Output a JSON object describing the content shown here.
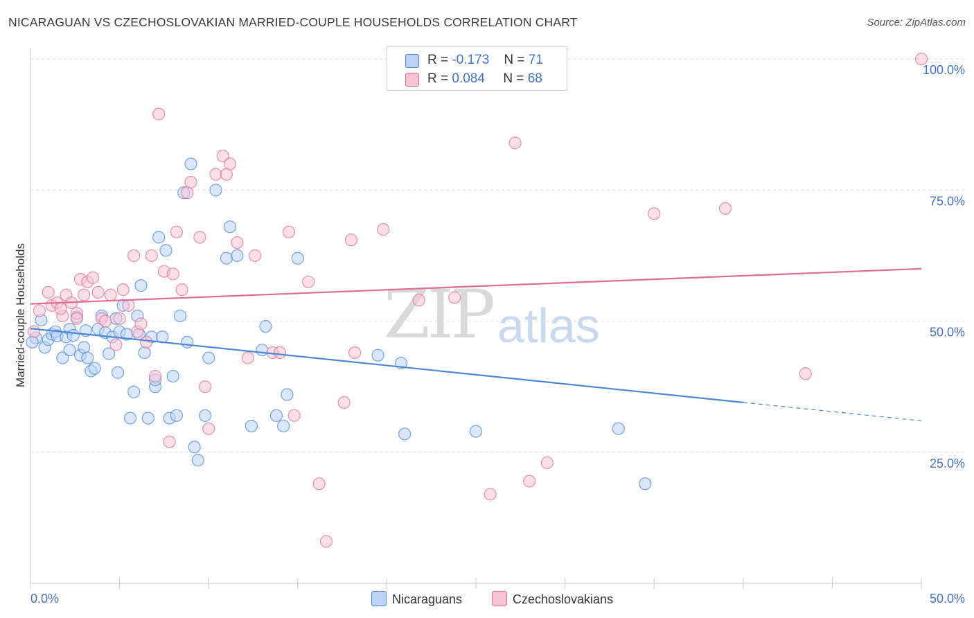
{
  "title": "NICARAGUAN VS CZECHOSLOVAKIAN MARRIED-COUPLE HOUSEHOLDS CORRELATION CHART",
  "source": "Source: ZipAtlas.com",
  "watermark": {
    "zip": "ZIP",
    "atlas": "atlas"
  },
  "colors": {
    "blue": "#4a86d8",
    "blue_fill": "#bcd3f5",
    "pink": "#e06c96",
    "pink_fill": "#f8c4d5",
    "grid": "#dddddd",
    "tick_text": "#4472c4"
  },
  "legend": {
    "rows": [
      {
        "r_label": "R =",
        "r_value": "-0.173",
        "n_label": "N =",
        "n_value": "71"
      },
      {
        "r_label": "R =",
        "r_value": "0.084",
        "n_label": "N =",
        "n_value": "68"
      }
    ]
  },
  "bottom_legend": [
    "Nicaraguans",
    "Czechoslovakians"
  ],
  "chart_data": {
    "type": "scatter",
    "title": "NICARAGUAN VS CZECHOSLOVAKIAN MARRIED-COUPLE HOUSEHOLDS CORRELATION CHART",
    "xlabel": "",
    "ylabel": "Married-couple Households",
    "xlim": [
      0,
      50
    ],
    "ylim": [
      0,
      102
    ],
    "x_tick_labels": [
      "0.0%",
      "50.0%"
    ],
    "y_ticks": [
      25,
      50,
      75,
      100
    ],
    "y_tick_labels": [
      "25.0%",
      "50.0%",
      "75.0%",
      "100.0%"
    ],
    "grid": true,
    "legend_placement": "top-center",
    "series": [
      {
        "name": "Nicaraguans",
        "color": "#4a86d8",
        "trend": {
          "x": [
            0,
            40
          ],
          "y": [
            48.6,
            34.5
          ],
          "dashed_to": [
            50,
            31.0
          ]
        },
        "points": [
          [
            0.3,
            46.8
          ],
          [
            0.6,
            50.2
          ],
          [
            0.8,
            45.0
          ],
          [
            1.0,
            46.5
          ],
          [
            1.2,
            47.5
          ],
          [
            1.4,
            48.0
          ],
          [
            1.5,
            47.2
          ],
          [
            1.8,
            43.0
          ],
          [
            2.0,
            47.0
          ],
          [
            2.2,
            48.5
          ],
          [
            2.4,
            47.3
          ],
          [
            2.6,
            50.8
          ],
          [
            2.8,
            43.5
          ],
          [
            3.0,
            45.0
          ],
          [
            3.2,
            43.0
          ],
          [
            3.4,
            40.5
          ],
          [
            3.6,
            41.0
          ],
          [
            3.8,
            48.5
          ],
          [
            4.0,
            51.0
          ],
          [
            4.2,
            47.8
          ],
          [
            4.4,
            43.8
          ],
          [
            4.6,
            47.0
          ],
          [
            4.8,
            50.5
          ],
          [
            5.0,
            48.0
          ],
          [
            5.2,
            53.0
          ],
          [
            5.4,
            47.5
          ],
          [
            5.6,
            31.5
          ],
          [
            5.8,
            36.5
          ],
          [
            6.0,
            51.0
          ],
          [
            6.2,
            56.8
          ],
          [
            6.4,
            44.0
          ],
          [
            6.6,
            31.5
          ],
          [
            6.8,
            47.0
          ],
          [
            7.0,
            37.5
          ],
          [
            7.2,
            66.0
          ],
          [
            7.4,
            47.0
          ],
          [
            7.6,
            63.5
          ],
          [
            7.8,
            31.5
          ],
          [
            8.0,
            39.5
          ],
          [
            8.2,
            32.0
          ],
          [
            8.4,
            51.0
          ],
          [
            8.6,
            74.5
          ],
          [
            8.8,
            46.0
          ],
          [
            9.0,
            80.0
          ],
          [
            9.2,
            26.0
          ],
          [
            9.4,
            23.5
          ],
          [
            9.8,
            32.0
          ],
          [
            10.0,
            43.0
          ],
          [
            10.4,
            75.0
          ],
          [
            11.0,
            62.0
          ],
          [
            11.2,
            68.0
          ],
          [
            11.6,
            62.5
          ],
          [
            12.4,
            30.0
          ],
          [
            13.0,
            44.5
          ],
          [
            13.2,
            49.0
          ],
          [
            13.8,
            32.0
          ],
          [
            14.2,
            30.0
          ],
          [
            14.4,
            36.0
          ],
          [
            15.0,
            62.0
          ],
          [
            19.5,
            43.5
          ],
          [
            20.8,
            42.0
          ],
          [
            21.0,
            28.5
          ],
          [
            25.0,
            29.0
          ],
          [
            33.0,
            29.5
          ],
          [
            34.5,
            19.0
          ],
          [
            2.2,
            44.5
          ],
          [
            4.9,
            40.2
          ],
          [
            7.0,
            38.8
          ],
          [
            6.1,
            47.5
          ],
          [
            3.1,
            48.2
          ],
          [
            0.1,
            46.0
          ]
        ]
      },
      {
        "name": "Czechoslovakians",
        "color": "#e06c96",
        "trend": {
          "x": [
            0,
            50
          ],
          "y": [
            53.3,
            60.0
          ]
        },
        "points": [
          [
            0.5,
            52.0
          ],
          [
            1.0,
            55.5
          ],
          [
            1.2,
            53.0
          ],
          [
            1.5,
            53.5
          ],
          [
            1.8,
            51.0
          ],
          [
            2.0,
            55.0
          ],
          [
            2.3,
            53.5
          ],
          [
            2.6,
            51.5
          ],
          [
            2.8,
            58.0
          ],
          [
            3.0,
            55.0
          ],
          [
            3.2,
            57.5
          ],
          [
            3.5,
            58.3
          ],
          [
            3.8,
            55.5
          ],
          [
            4.0,
            50.5
          ],
          [
            4.2,
            50.0
          ],
          [
            4.5,
            55.0
          ],
          [
            4.8,
            45.5
          ],
          [
            5.0,
            50.5
          ],
          [
            5.2,
            56.0
          ],
          [
            5.5,
            53.0
          ],
          [
            5.8,
            62.5
          ],
          [
            6.0,
            48.0
          ],
          [
            6.2,
            49.5
          ],
          [
            6.5,
            46.0
          ],
          [
            6.8,
            62.5
          ],
          [
            7.0,
            39.5
          ],
          [
            7.2,
            89.5
          ],
          [
            7.5,
            59.5
          ],
          [
            7.8,
            27.0
          ],
          [
            8.0,
            59.0
          ],
          [
            8.2,
            67.0
          ],
          [
            8.5,
            56.0
          ],
          [
            8.8,
            74.5
          ],
          [
            9.0,
            76.5
          ],
          [
            9.5,
            66.0
          ],
          [
            9.8,
            37.5
          ],
          [
            10.0,
            29.5
          ],
          [
            10.4,
            78.0
          ],
          [
            10.8,
            81.5
          ],
          [
            11.0,
            78.0
          ],
          [
            11.2,
            80.0
          ],
          [
            11.6,
            65.0
          ],
          [
            12.2,
            43.0
          ],
          [
            12.6,
            62.5
          ],
          [
            13.6,
            44.0
          ],
          [
            14.0,
            44.0
          ],
          [
            14.5,
            67.0
          ],
          [
            14.8,
            32.0
          ],
          [
            15.6,
            57.5
          ],
          [
            16.2,
            19.0
          ],
          [
            16.6,
            8.0
          ],
          [
            17.6,
            34.5
          ],
          [
            18.0,
            65.5
          ],
          [
            18.2,
            44.0
          ],
          [
            19.8,
            67.5
          ],
          [
            21.8,
            54.0
          ],
          [
            23.8,
            54.5
          ],
          [
            25.8,
            17.0
          ],
          [
            27.2,
            84.0
          ],
          [
            28.0,
            19.5
          ],
          [
            29.0,
            23.0
          ],
          [
            35.0,
            70.5
          ],
          [
            39.0,
            71.5
          ],
          [
            43.5,
            40.0
          ],
          [
            50.0,
            100.0
          ],
          [
            0.2,
            48.0
          ],
          [
            2.6,
            50.5
          ],
          [
            1.7,
            52.4
          ]
        ]
      }
    ]
  }
}
